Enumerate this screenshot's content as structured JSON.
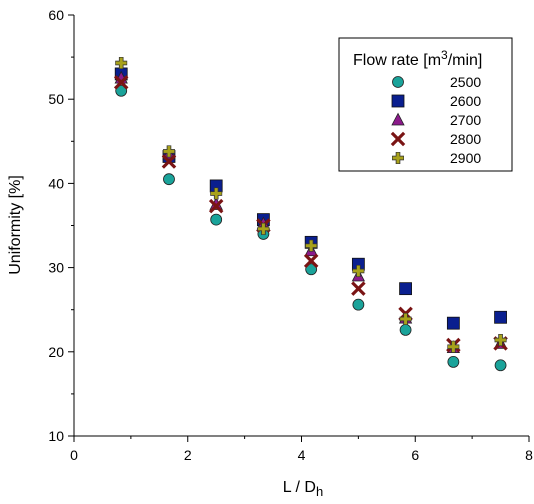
{
  "chart_data": {
    "type": "scatter",
    "title": "",
    "xlabel": {
      "main": "L / D",
      "sub": "h"
    },
    "ylabel": "Uniformity [%]",
    "xlim": [
      0,
      8
    ],
    "ylim": [
      10,
      60
    ],
    "xticks": [
      0,
      2,
      4,
      6,
      8
    ],
    "yticks": [
      10,
      20,
      30,
      40,
      50,
      60
    ],
    "grid": false,
    "legend": {
      "title": {
        "main": "Flow rate [m",
        "sup": "3",
        "end": "/min]"
      },
      "placement": "top-right"
    },
    "series": [
      {
        "name": "2500",
        "marker": "circle",
        "color": "#1aa39a",
        "x": [
          0.83,
          1.67,
          2.5,
          3.33,
          4.17,
          5.0,
          5.83,
          6.67,
          7.5
        ],
        "y": [
          51.0,
          40.5,
          35.7,
          34.0,
          29.8,
          25.6,
          22.6,
          18.8,
          18.4
        ]
      },
      {
        "name": "2600",
        "marker": "square",
        "color": "#0a1f8f",
        "x": [
          0.83,
          1.67,
          2.5,
          3.33,
          4.17,
          5.0,
          5.83,
          6.67,
          7.5
        ],
        "y": [
          53.0,
          43.2,
          39.7,
          35.7,
          33.0,
          30.4,
          27.5,
          23.4,
          24.1
        ]
      },
      {
        "name": "2700",
        "marker": "triangle",
        "color": "#8b1a8b",
        "x": [
          0.83,
          1.67,
          2.5,
          3.33,
          4.17,
          5.0,
          5.83,
          6.67,
          7.5
        ],
        "y": [
          52.5,
          43.5,
          37.5,
          35.2,
          32.0,
          29.0,
          24.0,
          20.5,
          21.0
        ]
      },
      {
        "name": "2800",
        "marker": "x",
        "color": "#7a1414",
        "x": [
          0.83,
          1.67,
          2.5,
          3.33,
          4.17,
          5.0,
          5.83,
          6.67,
          7.5
        ],
        "y": [
          52.0,
          42.6,
          37.3,
          35.0,
          30.8,
          27.5,
          24.5,
          20.8,
          21.0
        ]
      },
      {
        "name": "2900",
        "marker": "plus",
        "color": "#a8a21a",
        "x": [
          0.83,
          1.67,
          2.5,
          3.33,
          4.17,
          5.0,
          5.83,
          6.67,
          7.5
        ],
        "y": [
          54.3,
          43.8,
          38.8,
          34.6,
          32.6,
          29.6,
          23.9,
          20.6,
          21.4
        ]
      }
    ]
  }
}
